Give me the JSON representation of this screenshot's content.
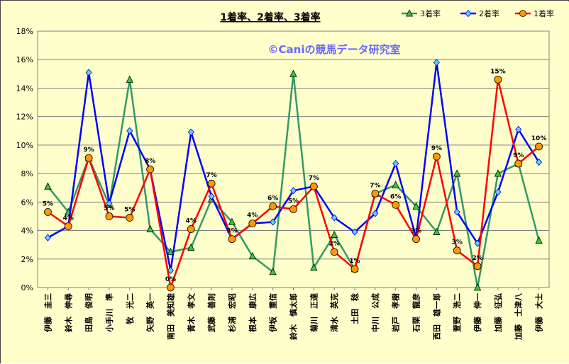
{
  "chart_data": {
    "type": "line",
    "title": "1着率、2着率、3着率",
    "watermark": "©Caniの競馬データ研究室",
    "xlabel": "",
    "ylabel": "",
    "ylim": [
      0,
      18
    ],
    "yticks": [
      "0%",
      "2%",
      "4%",
      "6%",
      "8%",
      "10%",
      "12%",
      "14%",
      "16%",
      "18%"
    ],
    "grid": true,
    "legend": "top-right",
    "categories": [
      "伊藤　圭三",
      "鈴木　伸尋",
      "田島　俊明",
      "小手川　準",
      "牧　光二",
      "矢野　英一",
      "南田　美知雄",
      "青木　孝文",
      "武藤　善則",
      "杉浦　宏昭",
      "根本　康広",
      "伊坂　重信",
      "鈴木　慎太郎",
      "菊川　正達",
      "清水　英克",
      "土田　稔",
      "中川　公成",
      "岩戸　孝樹",
      "石栗　龍彦",
      "西田　雄一郎",
      "萱野　浩二",
      "伊藤　伸一",
      "加藤　征弘",
      "加藤　士津八",
      "伊藤　大士"
    ],
    "series": [
      {
        "name": "3着率",
        "color": "#339966",
        "marker": "triangle",
        "marker_color": "#33cc33",
        "values": [
          7.1,
          5.3,
          9.1,
          5.8,
          14.6,
          4.1,
          2.5,
          2.8,
          6.2,
          4.6,
          2.2,
          1.1,
          15.0,
          1.4,
          3.7,
          1.3,
          6.6,
          7.2,
          5.7,
          3.9,
          8.0,
          0.0,
          8.0,
          8.7,
          3.3
        ]
      },
      {
        "name": "2着率",
        "color": "#0000ff",
        "marker": "diamond",
        "marker_color": "#66ccff",
        "values": [
          3.5,
          4.3,
          15.1,
          5.9,
          11.0,
          8.3,
          1.2,
          10.9,
          6.4,
          3.4,
          4.5,
          4.6,
          6.8,
          7.1,
          4.9,
          3.9,
          5.2,
          8.7,
          3.5,
          15.8,
          5.3,
          3.1,
          6.7,
          11.1,
          8.8
        ]
      },
      {
        "name": "1着率",
        "color": "#ff0000",
        "marker": "circle",
        "marker_color": "#ff9900",
        "values": [
          5.3,
          4.3,
          9.1,
          5.0,
          4.9,
          8.3,
          0.0,
          4.1,
          7.3,
          3.4,
          4.5,
          5.7,
          5.5,
          7.1,
          2.5,
          1.3,
          6.6,
          5.8,
          3.4,
          9.2,
          2.6,
          1.5,
          14.6,
          8.7,
          9.9
        ],
        "data_labels": [
          "5%",
          "4%",
          "9%",
          "5%",
          "5%",
          "8%",
          "0%",
          "4%",
          "7%",
          "3%",
          "4%",
          "6%",
          "5%",
          "7%",
          "2%",
          "1%",
          "7%",
          "6%",
          "3%",
          "9%",
          "3%",
          "2%",
          "15%",
          "9%",
          "10%"
        ]
      }
    ]
  }
}
